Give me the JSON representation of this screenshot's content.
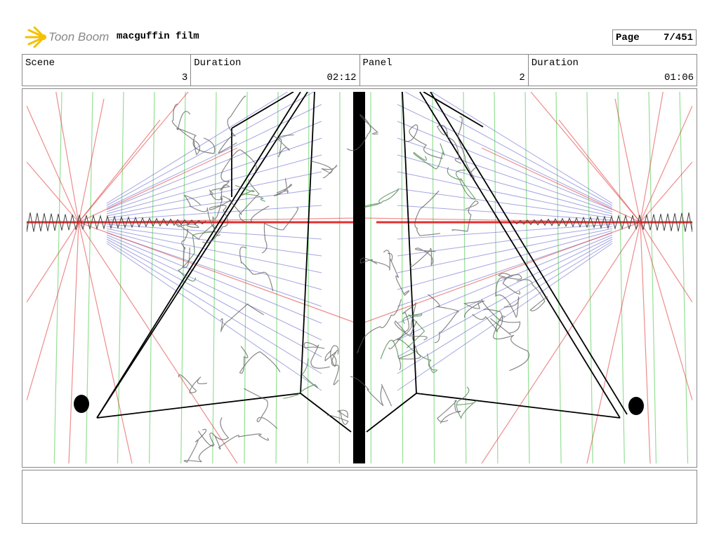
{
  "header": {
    "logo_text": "Toon Boom",
    "title": "macguffin film",
    "page_label": "Page",
    "page_value": "7/451"
  },
  "info": [
    {
      "label": "Scene",
      "value": "3"
    },
    {
      "label": "Duration",
      "value": "02:12"
    },
    {
      "label": "Panel",
      "value": "2"
    },
    {
      "label": "Duration",
      "value": "01:06"
    }
  ],
  "colors": {
    "perspective_red": "#e03030",
    "grid_green": "#7ad87a",
    "grid_blue": "#6a6ad0",
    "ink": "#000000"
  },
  "notes": ""
}
